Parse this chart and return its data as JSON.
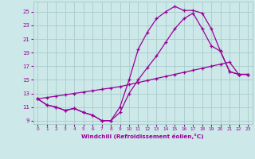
{
  "background_color": "#cce8e8",
  "grid_color": "#aacccc",
  "line_color": "#990099",
  "xlim": [
    -0.5,
    23.5
  ],
  "ylim": [
    8.5,
    26.5
  ],
  "xticks": [
    0,
    1,
    2,
    3,
    4,
    5,
    6,
    7,
    8,
    9,
    10,
    11,
    12,
    13,
    14,
    15,
    16,
    17,
    18,
    19,
    20,
    21,
    22,
    23
  ],
  "yticks": [
    9,
    11,
    13,
    15,
    17,
    19,
    21,
    23,
    25
  ],
  "xlabel": "Windchill (Refroidissement éolien,°C)",
  "series1_x": [
    0,
    1,
    2,
    3,
    4,
    5,
    6,
    7,
    8,
    9,
    10,
    11,
    12,
    13,
    14,
    15,
    16,
    17,
    18,
    19,
    20,
    21,
    22,
    23
  ],
  "series1_y": [
    12.2,
    11.3,
    11.0,
    10.5,
    10.8,
    10.2,
    9.8,
    9.0,
    9.0,
    11.0,
    15.0,
    19.5,
    22.0,
    24.0,
    25.0,
    25.8,
    25.2,
    25.2,
    24.8,
    22.5,
    19.2,
    16.2,
    15.8,
    15.8
  ],
  "series2_x": [
    0,
    1,
    2,
    3,
    4,
    5,
    6,
    7,
    8,
    9,
    10,
    11,
    12,
    13,
    14,
    15,
    16,
    17,
    18,
    19,
    20,
    21,
    22,
    23
  ],
  "series2_y": [
    12.2,
    11.3,
    11.0,
    10.5,
    10.8,
    10.2,
    9.8,
    9.0,
    9.0,
    10.2,
    13.0,
    15.0,
    16.8,
    18.5,
    20.5,
    22.5,
    24.0,
    24.8,
    22.5,
    20.0,
    19.2,
    16.2,
    15.8,
    15.8
  ],
  "series3_x": [
    0,
    1,
    2,
    3,
    4,
    5,
    6,
    7,
    8,
    9,
    10,
    11,
    12,
    13,
    14,
    15,
    16,
    17,
    18,
    19,
    20,
    21,
    22,
    23
  ],
  "series3_y": [
    12.2,
    12.4,
    12.6,
    12.8,
    13.0,
    13.2,
    13.4,
    13.6,
    13.8,
    14.0,
    14.3,
    14.6,
    14.9,
    15.2,
    15.5,
    15.8,
    16.1,
    16.4,
    16.7,
    17.0,
    17.3,
    17.6,
    15.8,
    15.8
  ]
}
